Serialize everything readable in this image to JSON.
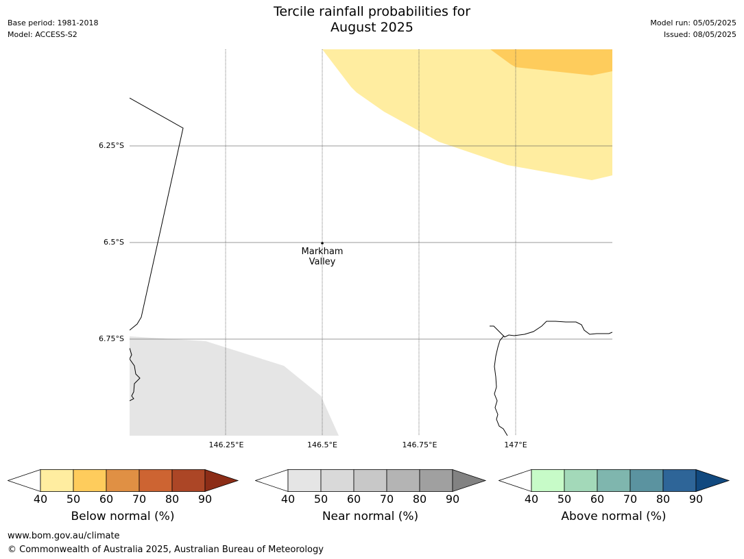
{
  "header": {
    "title_line1": "Tercile rainfall probabilities for",
    "title_line2": "August 2025",
    "base_period": "Base period: 1981-2018",
    "model": "Model: ACCESS-S2",
    "model_run": "Model run: 05/05/2025",
    "issued": "Issued: 08/05/2025"
  },
  "map": {
    "lat_labels": [
      "6.25°S",
      "6.5°S",
      "6.75°S"
    ],
    "lon_labels": [
      "146.25°E",
      "146.5°E",
      "146.75°E",
      "147°E"
    ],
    "place": {
      "name_line1": "Markham",
      "name_line2": "Valley"
    },
    "colors": {
      "below_40_50": "#ffeda0",
      "below_50_60": "#fecc5c",
      "near_40_50": "#e5e5e5",
      "coast": "#000000",
      "grid": "#555555"
    }
  },
  "legends": [
    {
      "title": "Below normal (%)",
      "ticks": [
        "40",
        "50",
        "60",
        "70",
        "80",
        "90"
      ],
      "colors": [
        "#ffeda0",
        "#fecc5c",
        "#e09044",
        "#cd6432",
        "#ac4626",
        "#8c2d17"
      ]
    },
    {
      "title": "Near normal (%)",
      "ticks": [
        "40",
        "50",
        "60",
        "70",
        "80",
        "90"
      ],
      "colors": [
        "#e5e5e5",
        "#d9d9d9",
        "#c8c8c8",
        "#b4b4b4",
        "#a0a0a0",
        "#828282"
      ]
    },
    {
      "title": "Above normal (%)",
      "ticks": [
        "40",
        "50",
        "60",
        "70",
        "80",
        "90"
      ],
      "colors": [
        "#c7fbc8",
        "#a3d9b9",
        "#7fb6ae",
        "#5b93a0",
        "#2e6598",
        "#11497f"
      ]
    }
  ],
  "footer": {
    "url": "www.bom.gov.au/climate",
    "copyright": "© Commonwealth of Australia 2025, Australian Bureau of Meteorology"
  }
}
